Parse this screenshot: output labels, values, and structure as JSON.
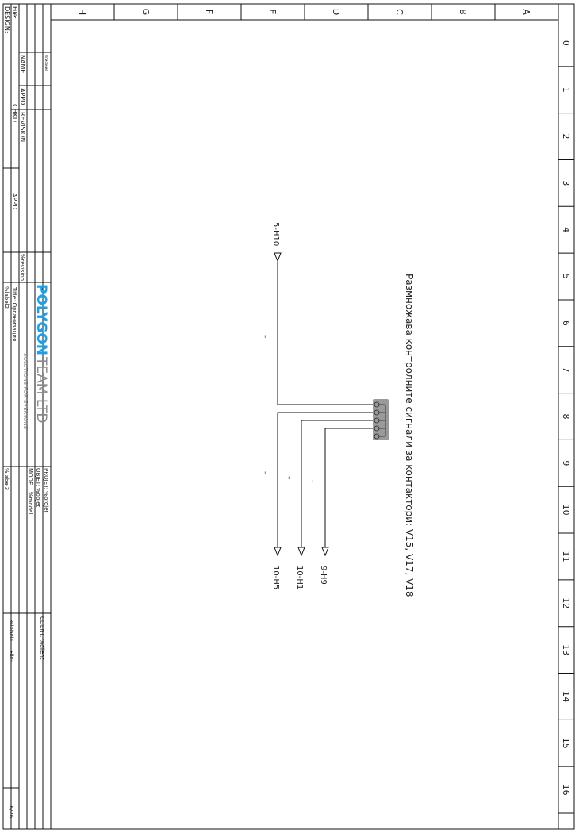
{
  "frame": {
    "row_labels": [
      "A",
      "B",
      "C",
      "D",
      "E",
      "F",
      "G",
      "H"
    ],
    "col_labels": [
      "0",
      "1",
      "2",
      "3",
      "4",
      "5",
      "6",
      "7",
      "8",
      "9",
      "10",
      "11",
      "12",
      "13",
      "14",
      "15",
      "16"
    ]
  },
  "diagram": {
    "title": "Размножава контролните сигнали за контактори: V15, V17, V18",
    "wire_marks": [
      "–",
      "–",
      "–",
      "–"
    ],
    "refs": {
      "top": "5-H10",
      "out1": "9-H9",
      "out2": "10-H1",
      "out3": "10-H5"
    },
    "colors": {
      "connector_fill": "#9a9a9a",
      "line": "#111111"
    }
  },
  "title_block": {
    "design_label": "DESIGN:",
    "file_label": "File:",
    "name_label": "NAME",
    "chkd_label": "CHKD",
    "appd_label": "APPD",
    "appd_label2": "APPD",
    "revision_label": "REVISION",
    "revision_value": "%revision",
    "small_note": "Описание",
    "logo_main_1": "POLYGON",
    "logo_main_2": "TEAM LTD",
    "logo_sub": "SOLUTIONS FOR EVERYONE",
    "title_field": "Title: Организация",
    "project_field": "PROJET: %projet",
    "object_field": "OBJET: %objet",
    "model_field": "MODEL: %model",
    "label2": "%label2",
    "label3": "%label3",
    "client_field": "CLIENT: %client",
    "label1": "%label1",
    "file_label2": "File:",
    "page": "16/26",
    "colors": {
      "logo_blue": "#1ea0e6",
      "logo_gray": "#8a8a8a"
    }
  }
}
